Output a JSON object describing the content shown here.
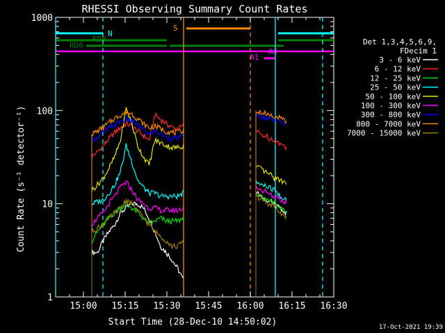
{
  "chart_data": {
    "type": "line",
    "title": "RHESSI Observing Summary Count Rates",
    "xlabel": "Start Time (28-Dec-10 14:50:02)",
    "ylabel": "Count Rate (s⁻¹ detector⁻¹)",
    "x_unit": "minutes",
    "xlim": [
      "14:50",
      "16:30"
    ],
    "ylim": [
      1,
      1000
    ],
    "yscale": "log",
    "x_ticks": [
      "15:00",
      "15:15",
      "15:30",
      "15:45",
      "16:00",
      "16:15",
      "16:30"
    ],
    "y_ticks": [
      "1",
      "10",
      "100",
      "1000"
    ],
    "legend_title": [
      "Det 1,3,4,5,6,9,",
      "FDecim 1"
    ],
    "legend_position": "right",
    "timestamp": "17-Oct-2021 19:39",
    "segments": [
      [
        "15:03",
        "15:36"
      ],
      [
        "16:02",
        "16:13"
      ]
    ],
    "series": [
      {
        "name": "3 - 6 keV",
        "color": "#ffffff",
        "seg1": [
          3,
          3,
          4,
          5,
          6,
          8,
          9,
          10,
          10,
          9,
          7,
          5,
          3.5,
          3,
          2.5,
          2,
          1.5
        ],
        "seg2": [
          13,
          12,
          11,
          10,
          9,
          8
        ]
      },
      {
        "name": "6 - 12 keV",
        "color": "#ff2a2a",
        "seg1": [
          32,
          36,
          42,
          50,
          58,
          66,
          72,
          68,
          60,
          54,
          48,
          90,
          80,
          72,
          66,
          64,
          68
        ],
        "seg2": [
          60,
          55,
          52,
          48,
          44,
          40
        ]
      },
      {
        "name": "12 - 25 keV",
        "color": "#00e000",
        "seg1": [
          4,
          5,
          6,
          7,
          8,
          9,
          10,
          9,
          8,
          7,
          6,
          6.5,
          7,
          6.5,
          6.5,
          6.5,
          7
        ],
        "seg2": [
          13,
          12,
          11,
          10,
          9,
          8
        ]
      },
      {
        "name": "25 - 50 keV",
        "color": "#00ffff",
        "seg1": [
          10,
          10.5,
          11,
          13,
          16,
          22,
          42,
          28,
          18,
          15,
          13,
          13,
          12,
          12,
          12,
          12,
          13
        ],
        "seg2": [
          17,
          16,
          15,
          14,
          12,
          11
        ]
      },
      {
        "name": "50 - 100 keV",
        "color": "#e8e800",
        "seg1": [
          14,
          16,
          19,
          24,
          32,
          48,
          105,
          72,
          42,
          32,
          26,
          48,
          45,
          42,
          40,
          40,
          42
        ],
        "seg2": [
          25,
          23,
          21,
          19,
          18,
          17
        ]
      },
      {
        "name": "100 - 300 keV",
        "color": "#ff00ff",
        "seg1": [
          6,
          7,
          8,
          10,
          12,
          15,
          17,
          14,
          11,
          10,
          9,
          9,
          8.5,
          8.5,
          8.5,
          8.5,
          9
        ],
        "seg2": [
          15,
          14,
          13,
          12,
          11,
          10
        ]
      },
      {
        "name": "300 - 800 keV",
        "color": "#0000ff",
        "seg1": [
          48,
          52,
          58,
          64,
          70,
          76,
          80,
          78,
          70,
          62,
          55,
          60,
          56,
          52,
          50,
          50,
          55
        ],
        "seg2": [
          88,
          85,
          82,
          78,
          74,
          68
        ]
      },
      {
        "name": "800 - 7000 keV",
        "color": "#ff8c00",
        "seg1": [
          56,
          60,
          66,
          74,
          82,
          90,
          96,
          92,
          82,
          72,
          65,
          68,
          64,
          60,
          58,
          58,
          62
        ],
        "seg2": [
          100,
          96,
          92,
          88,
          82,
          76
        ]
      },
      {
        "name": "7000 - 15000 keV",
        "color": "#a08000",
        "seg1": [
          5,
          5.5,
          6,
          7,
          8,
          9,
          11,
          10,
          8.5,
          7,
          6,
          5,
          4.5,
          4,
          3.5,
          3.5,
          4
        ],
        "seg2": [
          12,
          11,
          10,
          9.5,
          8,
          7
        ]
      }
    ],
    "state_bars": [
      {
        "label": "N",
        "color": "#00ffff",
        "ranges": [
          [
            "14:50",
            "15:07"
          ],
          [
            "16:10",
            "16:30"
          ]
        ]
      },
      {
        "label": "RD0",
        "color": "#008000",
        "ranges": [
          [
            "14:50",
            "15:30"
          ],
          [
            "16:10",
            "16:30"
          ]
        ]
      },
      {
        "label": "RD6",
        "color": "#008000",
        "ranges": [
          [
            "15:01",
            "15:30"
          ],
          [
            "15:31",
            "16:00"
          ],
          [
            "16:00",
            "16:12"
          ]
        ]
      },
      {
        "label": "S",
        "color": "#ff8c00",
        "ranges": [
          [
            "15:37",
            "16:00"
          ]
        ]
      },
      {
        "label": "A1",
        "color": "#ff00ff",
        "ranges": [
          [
            "14:50",
            "16:30"
          ]
        ]
      },
      {
        "label": "A0",
        "color": "#ff00ff",
        "ranges": [
          [
            "16:05",
            "16:09"
          ]
        ]
      }
    ],
    "vertical_markers": [
      {
        "x": "14:50",
        "color": "#00ffff",
        "style": "solid"
      },
      {
        "x": "15:07",
        "color": "#00ffff",
        "style": "dashed"
      },
      {
        "x": "15:36",
        "color": "#ff8c00",
        "style": "solid"
      },
      {
        "x": "16:00",
        "color": "#ff8c00",
        "style": "dashed"
      },
      {
        "x": "16:09",
        "color": "#00ffff",
        "style": "solid"
      },
      {
        "x": "16:26",
        "color": "#00ffff",
        "style": "dashed"
      }
    ]
  }
}
